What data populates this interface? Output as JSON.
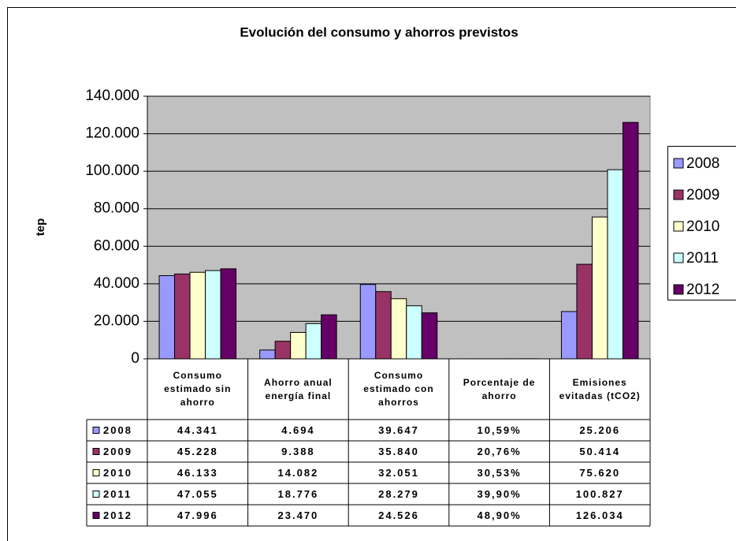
{
  "chart_data": {
    "type": "bar",
    "title": "Evolución del consumo y ahorros previstos",
    "y_label": "tep",
    "categories": [
      "Consumo estimado sin ahorro",
      "Ahorro anual energía final",
      "Consumo estimado con ahorros",
      "Porcentaje de ahorro",
      "Emisiones evitadas (tCO2)"
    ],
    "series": [
      {
        "name": "2008",
        "color": "#9999ff",
        "values": [
          44341,
          4694,
          39647,
          10.59,
          25206
        ],
        "value_labels": [
          "44.341",
          "4.694",
          "39.647",
          "10,59%",
          "25.206"
        ]
      },
      {
        "name": "2009",
        "color": "#993366",
        "values": [
          45228,
          9388,
          35840,
          20.76,
          50414
        ],
        "value_labels": [
          "45.228",
          "9.388",
          "35.840",
          "20,76%",
          "50.414"
        ]
      },
      {
        "name": "2010",
        "color": "#ffffcc",
        "values": [
          46133,
          14082,
          32051,
          30.53,
          75620
        ],
        "value_labels": [
          "46.133",
          "14.082",
          "32.051",
          "30,53%",
          "75.620"
        ]
      },
      {
        "name": "2011",
        "color": "#ccffff",
        "values": [
          47055,
          18776,
          28279,
          39.9,
          100827
        ],
        "value_labels": [
          "47.055",
          "18.776",
          "28.279",
          "39,90%",
          "100.827"
        ]
      },
      {
        "name": "2012",
        "color": "#660066",
        "values": [
          47996,
          23470,
          24526,
          48.9,
          126034
        ],
        "value_labels": [
          "47.996",
          "23.470",
          "24.526",
          "48,90%",
          "126.034"
        ]
      }
    ],
    "ylim": [
      0,
      140000
    ],
    "yticks": [
      0,
      {
        "value": 20000,
        "label": "20.000"
      },
      {
        "value": 40000,
        "label": "40.000"
      },
      {
        "value": 60000,
        "label": "60.000"
      },
      {
        "value": 80000,
        "label": "80.000"
      },
      {
        "value": 100000,
        "label": "100.000"
      },
      {
        "value": 120000,
        "label": "120.000"
      },
      {
        "value": 140000,
        "label": "140.000"
      }
    ],
    "grid": true,
    "legend": "right"
  }
}
